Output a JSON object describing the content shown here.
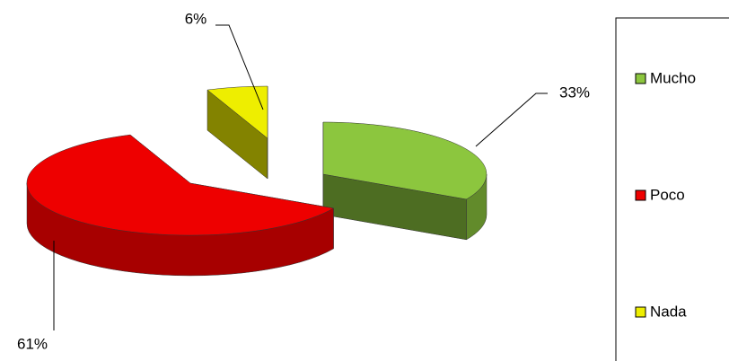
{
  "chart_data": {
    "type": "pie",
    "categories": [
      "Mucho",
      "Poco",
      "Nada"
    ],
    "values": [
      33,
      61,
      6
    ],
    "value_labels": [
      "33%",
      "61%",
      "6%"
    ],
    "colors": [
      "#8cc63e",
      "#ee0000",
      "#eeee00"
    ],
    "legend": "right"
  }
}
